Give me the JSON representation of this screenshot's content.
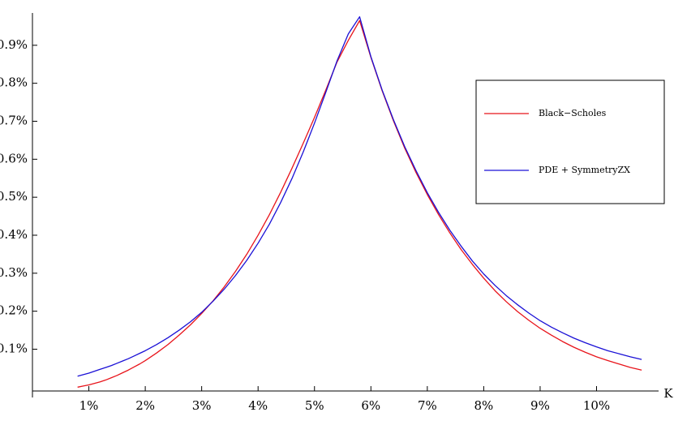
{
  "chart_data": {
    "type": "line",
    "title": "",
    "xlabel": "K",
    "ylabel": "",
    "xlim": [
      0.0,
      0.111
    ],
    "ylim": [
      -0.0001,
      0.00985
    ],
    "grid": false,
    "legend_position": "top-right",
    "x_ticks": [
      0.01,
      0.02,
      0.03,
      0.04,
      0.05,
      0.06,
      0.07,
      0.08,
      0.09,
      0.1
    ],
    "x_tick_labels": [
      "1%",
      "2%",
      "3%",
      "4%",
      "5%",
      "6%",
      "7%",
      "8%",
      "9%",
      "10%"
    ],
    "y_ticks": [
      0.001,
      0.002,
      0.003,
      0.004,
      0.005,
      0.006,
      0.007,
      0.008,
      0.009
    ],
    "y_tick_labels": [
      "0.1%",
      "0.2%",
      "0.3%",
      "0.4%",
      "0.5%",
      "0.6%",
      "0.7%",
      "0.8%",
      "0.9%"
    ],
    "series": [
      {
        "name": "Black−Scholes",
        "color": "#e8141b",
        "x": [
          0.008,
          0.009,
          0.01,
          0.011,
          0.012,
          0.013,
          0.014,
          0.015,
          0.016,
          0.017,
          0.018,
          0.019,
          0.02,
          0.022,
          0.024,
          0.026,
          0.028,
          0.03,
          0.032,
          0.034,
          0.036,
          0.038,
          0.04,
          0.042,
          0.044,
          0.046,
          0.048,
          0.05,
          0.052,
          0.054,
          0.056,
          0.058,
          0.06,
          0.062,
          0.064,
          0.066,
          0.068,
          0.07,
          0.072,
          0.074,
          0.076,
          0.078,
          0.08,
          0.082,
          0.084,
          0.086,
          0.088,
          0.09,
          0.092,
          0.094,
          0.096,
          0.098,
          0.1,
          0.102,
          0.104,
          0.106,
          0.108
        ],
        "y": [
          0.0,
          3e-05,
          6e-05,
          0.0001,
          0.00014,
          0.00019,
          0.00025,
          0.00031,
          0.00038,
          0.00045,
          0.00053,
          0.00061,
          0.0007,
          0.0009,
          0.00112,
          0.00137,
          0.00164,
          0.00194,
          0.00227,
          0.00264,
          0.00305,
          0.0035,
          0.004,
          0.00454,
          0.00513,
          0.00576,
          0.00642,
          0.0071,
          0.00782,
          0.00856,
          0.00913,
          0.00965,
          0.00868,
          0.0078,
          0.00701,
          0.00629,
          0.00565,
          0.00507,
          0.00454,
          0.00406,
          0.00362,
          0.00323,
          0.00287,
          0.00254,
          0.00225,
          0.00199,
          0.00176,
          0.00155,
          0.00137,
          0.0012,
          0.00105,
          0.00092,
          0.0008,
          0.0007,
          0.00061,
          0.00052,
          0.00045
        ]
      },
      {
        "name": "PDE + SymmetryZX",
        "color": "#1a10d6",
        "x": [
          0.008,
          0.009,
          0.01,
          0.011,
          0.012,
          0.013,
          0.014,
          0.015,
          0.016,
          0.017,
          0.018,
          0.019,
          0.02,
          0.022,
          0.024,
          0.026,
          0.028,
          0.03,
          0.032,
          0.034,
          0.036,
          0.038,
          0.04,
          0.042,
          0.044,
          0.046,
          0.048,
          0.05,
          0.052,
          0.054,
          0.056,
          0.058,
          0.06,
          0.062,
          0.064,
          0.066,
          0.068,
          0.07,
          0.072,
          0.074,
          0.076,
          0.078,
          0.08,
          0.082,
          0.084,
          0.086,
          0.088,
          0.09,
          0.092,
          0.094,
          0.096,
          0.098,
          0.1,
          0.102,
          0.104,
          0.106,
          0.108
        ],
        "y": [
          0.00029,
          0.00033,
          0.00037,
          0.00042,
          0.00047,
          0.00052,
          0.00057,
          0.00063,
          0.00069,
          0.00075,
          0.00082,
          0.00089,
          0.00096,
          0.00112,
          0.0013,
          0.0015,
          0.00172,
          0.00197,
          0.00226,
          0.00258,
          0.00294,
          0.00334,
          0.00379,
          0.00429,
          0.00486,
          0.00549,
          0.00619,
          0.00695,
          0.00776,
          0.00859,
          0.0093,
          0.00975,
          0.0087,
          0.00782,
          0.00704,
          0.00633,
          0.0057,
          0.00512,
          0.0046,
          0.00413,
          0.00371,
          0.00332,
          0.00298,
          0.00268,
          0.00241,
          0.00217,
          0.00195,
          0.00175,
          0.00158,
          0.00143,
          0.00129,
          0.00117,
          0.00106,
          0.00096,
          0.00088,
          0.0008,
          0.00073
        ]
      }
    ]
  }
}
